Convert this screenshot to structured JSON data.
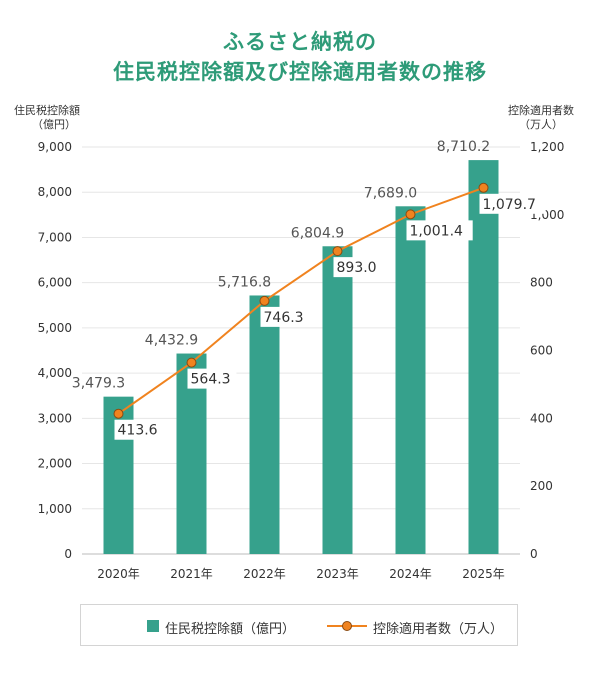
{
  "title_line1": "ふるさと納税の",
  "title_line2": "住民税控除額及び控除適用者数の推移",
  "y_left_title": [
    "住民税控除額",
    "（億円）"
  ],
  "y_right_title": [
    "控除適用者数",
    "（万人）"
  ],
  "colors": {
    "bar": "#36a18c",
    "line": "#f0831f",
    "point_fill": "#f0831f",
    "title": "#2e9b78",
    "grid": "#e6e6e6"
  },
  "chart_data": {
    "type": "bar",
    "categories": [
      "2020年",
      "2021年",
      "2022年",
      "2023年",
      "2024年",
      "2025年"
    ],
    "series": [
      {
        "name": "住民税控除額（億円）",
        "type": "bar",
        "axis": "left",
        "values": [
          3479.3,
          4432.9,
          5716.8,
          6804.9,
          7689.0,
          8710.2
        ],
        "labels": [
          "3,479.3",
          "4,432.9",
          "5,716.8",
          "6,804.9",
          "7,689.0",
          "8,710.2"
        ]
      },
      {
        "name": "控除適用者数（万人）",
        "type": "line",
        "axis": "right",
        "values": [
          413.6,
          564.3,
          746.3,
          893.0,
          1001.4,
          1079.7
        ],
        "labels": [
          "413.6",
          "564.3",
          "746.3",
          "893.0",
          "1,001.4",
          "1,079.7"
        ]
      }
    ],
    "y_left": {
      "ylim": [
        0,
        9000
      ],
      "ticks": [
        "0",
        "1,000",
        "2,000",
        "3,000",
        "4,000",
        "5,000",
        "6,000",
        "7,000",
        "8,000",
        "9,000"
      ]
    },
    "y_right": {
      "ylim": [
        0,
        1200
      ],
      "ticks": [
        "0",
        "200",
        "400",
        "600",
        "800",
        "1,000",
        "1,200"
      ]
    },
    "grid": true,
    "legend": "bottom"
  },
  "legend": {
    "bar_label": "住民税控除額（億円）",
    "line_label": "控除適用者数（万人）"
  }
}
